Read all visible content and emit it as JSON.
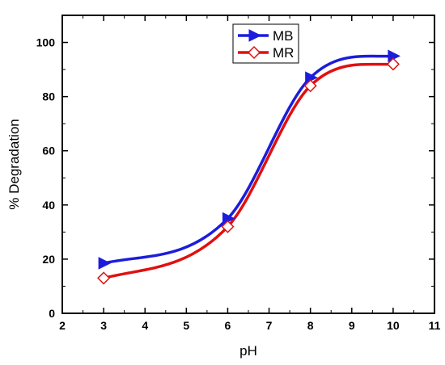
{
  "chart_data": {
    "type": "line",
    "title": "",
    "xlabel": "pH",
    "ylabel": "% Degradation",
    "xlim": [
      2,
      11
    ],
    "ylim": [
      0,
      110
    ],
    "x_ticks": [
      2,
      3,
      4,
      5,
      6,
      7,
      8,
      9,
      10,
      11
    ],
    "y_ticks": [
      0,
      20,
      40,
      60,
      80,
      100
    ],
    "grid": false,
    "legend_position": "top-center",
    "series": [
      {
        "name": "MB",
        "color": "#1c1cdc",
        "marker": "right-triangle",
        "x": [
          3,
          6,
          8,
          10
        ],
        "y": [
          18.5,
          35,
          87,
          95
        ]
      },
      {
        "name": "MR",
        "color": "#e01010",
        "marker": "open-diamond",
        "x": [
          3,
          6,
          8,
          10
        ],
        "y": [
          13,
          32,
          84,
          92
        ]
      }
    ]
  }
}
